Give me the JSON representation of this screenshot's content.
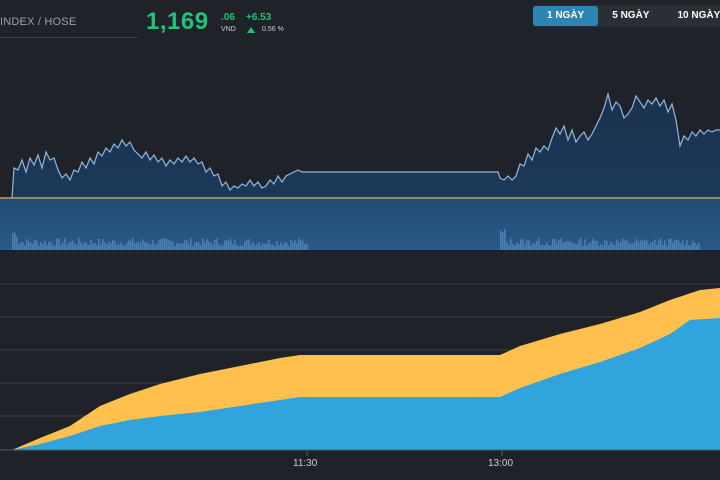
{
  "header": {
    "ticker": "INDEX / HOSE",
    "price_main": "1,169",
    "price_decimal": ".06",
    "currency": "VND",
    "change_abs": "+6.53",
    "change_pct": "0.56 %"
  },
  "range_tabs": [
    {
      "label": "1 NGÀY",
      "active": true
    },
    {
      "label": "5 NGÀY",
      "active": false
    },
    {
      "label": "10 NGÀY",
      "active": false
    }
  ],
  "x_axis": {
    "labels": [
      "11:30",
      "13:00"
    ]
  },
  "colors": {
    "price_up": "#21c27a",
    "price_line": "#8fb8dc",
    "volume_bar": "#4a7fb0",
    "area_upper": "#ffc04d",
    "area_lower": "#31a4dd",
    "active_tab": "#2c85b4"
  }
}
